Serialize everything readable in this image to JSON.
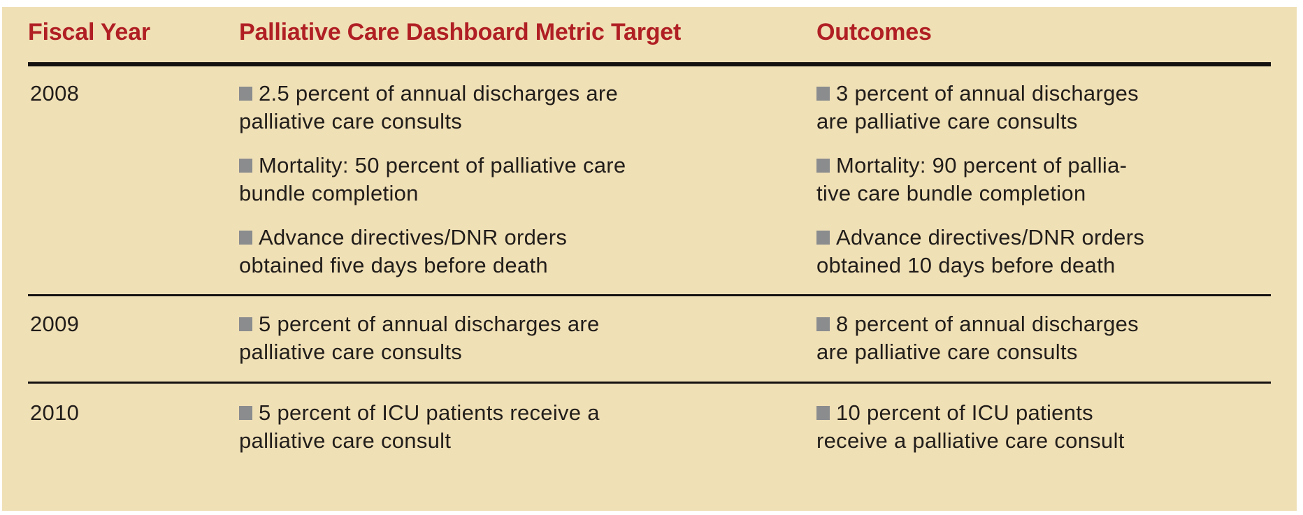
{
  "figure": {
    "type": "table",
    "colors": {
      "background_tan": "#F0E0B6",
      "header_red": "#B01F24",
      "rule_black": "#141110",
      "text_black": "#211D1A",
      "bullet_gray": "#8A8C8E"
    },
    "bullet_icon": "gray-square"
  },
  "table": {
    "columns": [
      {
        "label": "Fiscal Year"
      },
      {
        "label": "Palliative Care Dashboard Metric Target"
      },
      {
        "label": "Outcomes"
      }
    ],
    "rows": [
      {
        "year": "2008",
        "targets": [
          "2.5 percent of annual discharges are\npalliative care consults",
          "Mortality: 50 percent of palliative care\nbundle completion",
          "Advance directives/DNR orders\nobtained five days before death"
        ],
        "outcomes": [
          "3 percent of annual discharges\nare palliative care consults",
          "Mortality: 90 percent of pallia-\ntive care bundle completion",
          "Advance directives/DNR orders\nobtained 10 days before death"
        ]
      },
      {
        "year": "2009",
        "targets": [
          "5 percent of annual discharges are\npalliative care consults"
        ],
        "outcomes": [
          "8 percent of annual discharges\nare palliative care consults"
        ]
      },
      {
        "year": "2010",
        "targets": [
          "5 percent of ICU patients receive a\npalliative care consult"
        ],
        "outcomes": [
          "10 percent of ICU patients\nreceive a palliative care consult"
        ]
      }
    ]
  }
}
